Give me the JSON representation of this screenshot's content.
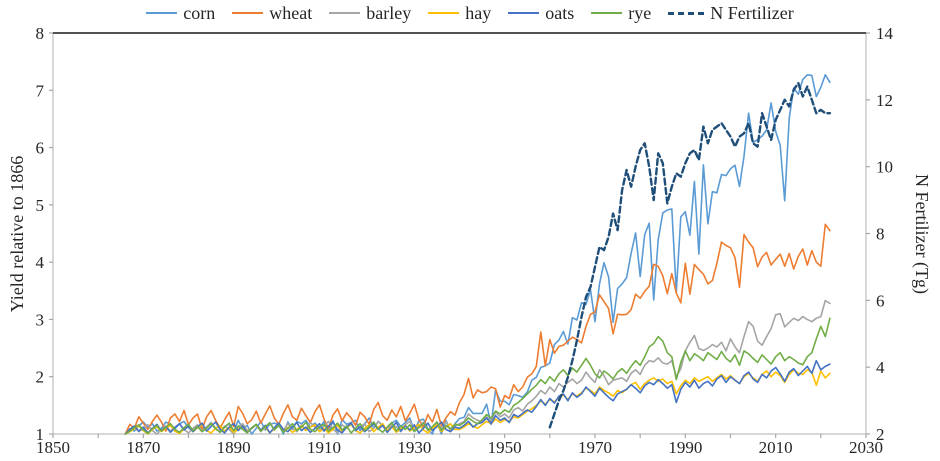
{
  "figure": {
    "background": "#FFFFFF",
    "axis_line_color": "#BFBFBF",
    "top_border_color": "#3B3B3B",
    "tick_color": "#A6A6A6",
    "label_color": "#262626"
  },
  "chart_data": {
    "type": "line",
    "title": "",
    "xlabel": "",
    "ylabel_left": "Yield relative to 1866",
    "ylabel_right": "N Fertilizer (Tg)",
    "x_range": [
      1850,
      2030
    ],
    "x_ticks": [
      1850,
      1870,
      1890,
      1910,
      1930,
      1950,
      1970,
      1990,
      2010,
      2030
    ],
    "x_minor_tick_step": 10,
    "y_left_range": [
      1,
      8
    ],
    "y_left_ticks": [
      1,
      2,
      3,
      4,
      5,
      6,
      7,
      8
    ],
    "y_right_range": [
      2,
      14
    ],
    "y_right_ticks": [
      2,
      4,
      6,
      8,
      10,
      12,
      14
    ],
    "grid": false,
    "legend_position": "top",
    "series": [
      {
        "name": "corn",
        "color": "#5B9BD5",
        "axis": "left",
        "style": "solid",
        "width": 1.6,
        "start_year": 1866,
        "values": [
          1.0,
          1.09,
          1.05,
          1.14,
          1.21,
          1.12,
          1.18,
          1.05,
          1.1,
          1.21,
          1.16,
          1.09,
          1.18,
          1.22,
          1.11,
          1.05,
          1.15,
          1.08,
          1.12,
          1.2,
          1.09,
          1.03,
          1.12,
          1.18,
          1.04,
          1.24,
          1.09,
          1.15,
          0.99,
          1.1,
          1.22,
          1.07,
          1.17,
          1.19,
          1.16,
          0.98,
          1.21,
          1.08,
          1.22,
          1.18,
          1.24,
          1.12,
          1.19,
          1.1,
          1.22,
          1.03,
          1.23,
          1.0,
          1.25,
          1.17,
          1.2,
          1.24,
          1.06,
          1.18,
          1.28,
          1.1,
          1.22,
          1.15,
          1.06,
          1.19,
          1.24,
          1.13,
          1.2,
          1.28,
          1.05,
          1.23,
          1.26,
          1.09,
          0.99,
          1.21,
          0.98,
          1.24,
          1.06,
          1.18,
          1.27,
          1.29,
          1.46,
          1.36,
          1.36,
          1.36,
          1.52,
          1.17,
          1.77,
          1.57,
          1.57,
          1.51,
          1.69,
          1.67,
          1.64,
          1.73,
          1.94,
          1.99,
          2.16,
          2.19,
          2.24,
          2.56,
          2.64,
          2.79,
          2.57,
          3.03,
          2.99,
          3.29,
          3.26,
          3.52,
          2.96,
          3.62,
          3.99,
          3.74,
          2.95,
          3.54,
          3.62,
          3.73,
          4.15,
          4.51,
          3.75,
          4.48,
          4.68,
          3.34,
          4.39,
          4.86,
          4.91,
          4.93,
          3.48,
          4.79,
          4.88,
          4.47,
          5.41,
          4.14,
          5.7,
          4.67,
          5.23,
          5.21,
          5.53,
          5.51,
          5.63,
          5.69,
          5.32,
          5.85,
          6.6,
          6.09,
          6.14,
          6.2,
          6.31,
          6.78,
          6.28,
          6.04,
          5.07,
          6.51,
          7.04,
          6.93,
          7.19,
          7.27,
          7.26,
          6.89,
          7.05,
          7.27,
          7.14
        ]
      },
      {
        "name": "wheat",
        "color": "#ED7D31",
        "axis": "left",
        "style": "solid",
        "width": 1.6,
        "start_year": 1866,
        "values": [
          1.0,
          1.17,
          1.1,
          1.3,
          1.19,
          1.08,
          1.22,
          1.33,
          1.21,
          1.05,
          1.28,
          1.35,
          1.22,
          1.41,
          1.16,
          1.28,
          1.35,
          1.08,
          1.3,
          1.41,
          1.24,
          1.1,
          1.25,
          1.38,
          1.13,
          1.48,
          1.36,
          1.18,
          1.25,
          1.4,
          1.19,
          1.35,
          1.49,
          1.28,
          1.17,
          1.36,
          1.51,
          1.3,
          1.24,
          1.45,
          1.32,
          1.2,
          1.39,
          1.51,
          1.26,
          1.1,
          1.33,
          1.44,
          1.23,
          1.37,
          1.28,
          1.15,
          1.38,
          1.3,
          1.17,
          1.43,
          1.55,
          1.32,
          1.24,
          1.42,
          1.3,
          1.48,
          1.23,
          1.36,
          1.52,
          1.25,
          1.12,
          1.34,
          1.21,
          1.43,
          1.14,
          1.28,
          1.39,
          1.33,
          1.55,
          1.69,
          1.97,
          1.63,
          1.77,
          1.72,
          1.74,
          1.82,
          1.79,
          1.47,
          1.67,
          1.62,
          1.86,
          1.74,
          1.82,
          1.99,
          2.05,
          2.18,
          2.78,
          2.19,
          2.65,
          2.41,
          2.53,
          2.55,
          2.62,
          2.69,
          2.65,
          2.59,
          2.88,
          3.09,
          3.13,
          3.43,
          3.31,
          3.19,
          2.75,
          3.09,
          3.08,
          3.09,
          3.17,
          3.44,
          3.37,
          3.49,
          3.58,
          3.96,
          3.93,
          3.76,
          3.45,
          3.8,
          3.46,
          3.29,
          3.98,
          3.44,
          3.96,
          3.87,
          3.79,
          3.62,
          3.68,
          3.98,
          4.35,
          4.29,
          4.25,
          4.08,
          3.56,
          4.48,
          4.35,
          4.25,
          3.92,
          4.09,
          4.17,
          3.95,
          4.05,
          4.14,
          3.93,
          4.15,
          3.88,
          4.1,
          4.23,
          3.95,
          4.2,
          4.0,
          3.93,
          4.66,
          4.55
        ]
      },
      {
        "name": "barley",
        "color": "#A5A5A5",
        "axis": "left",
        "style": "solid",
        "width": 1.6,
        "start_year": 1866,
        "values": [
          1.0,
          1.06,
          1.12,
          1.04,
          1.1,
          1.16,
          1.06,
          1.0,
          1.08,
          1.14,
          1.05,
          1.12,
          1.18,
          1.08,
          1.02,
          1.1,
          1.16,
          1.06,
          1.12,
          1.2,
          1.1,
          1.04,
          1.14,
          1.08,
          1.0,
          1.12,
          1.18,
          1.06,
          1.1,
          1.16,
          1.04,
          1.12,
          1.2,
          1.08,
          1.14,
          1.06,
          1.18,
          1.1,
          1.04,
          1.16,
          1.08,
          1.2,
          1.12,
          1.06,
          1.14,
          1.22,
          1.08,
          1.02,
          1.16,
          1.1,
          1.2,
          1.06,
          1.12,
          1.18,
          1.04,
          1.1,
          1.22,
          1.14,
          1.06,
          1.18,
          1.12,
          1.04,
          1.16,
          1.22,
          1.08,
          1.14,
          1.2,
          1.06,
          1.12,
          1.18,
          1.1,
          1.22,
          1.06,
          1.14,
          1.18,
          1.22,
          1.35,
          1.28,
          1.24,
          1.21,
          1.3,
          1.22,
          1.38,
          1.3,
          1.35,
          1.28,
          1.42,
          1.46,
          1.4,
          1.52,
          1.58,
          1.66,
          1.76,
          1.7,
          1.82,
          1.74,
          1.88,
          1.82,
          1.9,
          1.96,
          1.88,
          1.94,
          2.08,
          1.98,
          1.9,
          2.12,
          2.02,
          1.86,
          1.94,
          1.96,
          1.98,
          1.92,
          2.06,
          2.12,
          2.04,
          2.2,
          2.28,
          2.26,
          2.33,
          2.24,
          2.22,
          2.28,
          2.0,
          2.14,
          2.45,
          2.6,
          2.72,
          2.49,
          2.46,
          2.5,
          2.56,
          2.52,
          2.6,
          2.45,
          2.66,
          2.52,
          2.42,
          2.7,
          2.96,
          2.88,
          2.62,
          2.55,
          2.7,
          2.84,
          3.08,
          3.1,
          2.87,
          2.95,
          3.02,
          2.98,
          3.05,
          3.0,
          2.96,
          3.02,
          3.05,
          3.33,
          3.28
        ]
      },
      {
        "name": "hay",
        "color": "#FFC000",
        "axis": "left",
        "style": "solid",
        "width": 1.6,
        "start_year": 1866,
        "values": [
          1.0,
          1.04,
          1.09,
          1.14,
          1.06,
          1.0,
          1.08,
          1.13,
          1.04,
          1.1,
          1.15,
          1.05,
          1.01,
          1.09,
          1.14,
          1.04,
          1.11,
          1.16,
          1.06,
          1.02,
          1.1,
          1.15,
          1.05,
          1.12,
          1.03,
          1.08,
          1.14,
          1.04,
          1.1,
          1.16,
          1.06,
          1.12,
          1.02,
          1.09,
          1.15,
          1.05,
          1.11,
          1.03,
          1.08,
          1.14,
          1.06,
          1.12,
          1.16,
          1.04,
          1.1,
          1.02,
          1.08,
          1.15,
          1.05,
          1.11,
          1.17,
          1.06,
          1.02,
          1.1,
          1.16,
          1.04,
          1.12,
          1.18,
          1.06,
          1.13,
          1.03,
          1.09,
          1.15,
          1.05,
          1.11,
          1.17,
          1.07,
          1.02,
          1.1,
          1.16,
          1.04,
          1.12,
          1.18,
          1.08,
          1.08,
          1.12,
          1.18,
          1.14,
          1.1,
          1.16,
          1.22,
          1.18,
          1.26,
          1.2,
          1.25,
          1.22,
          1.3,
          1.28,
          1.34,
          1.4,
          1.44,
          1.5,
          1.58,
          1.52,
          1.6,
          1.56,
          1.64,
          1.68,
          1.6,
          1.7,
          1.66,
          1.72,
          1.8,
          1.76,
          1.7,
          1.82,
          1.76,
          1.72,
          1.66,
          1.76,
          1.72,
          1.78,
          1.86,
          1.9,
          1.78,
          1.88,
          1.94,
          1.98,
          1.92,
          1.96,
          1.88,
          1.92,
          1.7,
          1.84,
          1.94,
          1.88,
          1.98,
          1.92,
          1.96,
          2.0,
          1.92,
          1.98,
          2.04,
          1.96,
          2.02,
          1.94,
          1.88,
          2.0,
          2.06,
          1.98,
          1.92,
          2.04,
          2.1,
          2.0,
          2.08,
          2.02,
          1.9,
          2.04,
          2.12,
          2.06,
          2.04,
          2.12,
          2.08,
          1.85,
          2.1,
          1.98,
          2.06
        ]
      },
      {
        "name": "oats",
        "color": "#4472C4",
        "axis": "left",
        "style": "solid",
        "width": 1.6,
        "start_year": 1866,
        "values": [
          1.0,
          1.08,
          1.14,
          1.05,
          1.12,
          1.02,
          1.1,
          1.17,
          1.06,
          1.13,
          1.03,
          1.11,
          1.18,
          1.07,
          1.14,
          1.04,
          1.12,
          1.19,
          1.05,
          1.13,
          1.21,
          1.08,
          1.02,
          1.12,
          1.18,
          1.06,
          1.14,
          1.03,
          1.1,
          1.17,
          1.07,
          1.15,
          1.02,
          1.11,
          1.19,
          1.08,
          1.04,
          1.13,
          1.2,
          1.06,
          1.12,
          1.03,
          1.1,
          1.18,
          1.05,
          1.14,
          1.21,
          1.07,
          1.02,
          1.12,
          1.19,
          1.06,
          1.13,
          1.04,
          1.11,
          1.18,
          1.08,
          1.15,
          1.03,
          1.12,
          1.2,
          1.05,
          1.14,
          1.07,
          1.16,
          1.02,
          1.1,
          1.19,
          1.06,
          1.13,
          1.21,
          1.08,
          1.04,
          1.12,
          1.1,
          1.15,
          1.22,
          1.12,
          1.18,
          1.2,
          1.28,
          1.18,
          1.32,
          1.24,
          1.28,
          1.2,
          1.34,
          1.3,
          1.36,
          1.42,
          1.38,
          1.48,
          1.6,
          1.5,
          1.62,
          1.54,
          1.66,
          1.7,
          1.58,
          1.72,
          1.64,
          1.7,
          1.82,
          1.74,
          1.66,
          1.8,
          1.72,
          1.64,
          1.58,
          1.7,
          1.74,
          1.78,
          1.86,
          1.8,
          1.72,
          1.84,
          1.9,
          1.86,
          1.95,
          1.88,
          1.8,
          1.86,
          1.55,
          1.78,
          1.9,
          1.82,
          1.94,
          1.8,
          1.88,
          1.92,
          1.84,
          1.96,
          2.02,
          1.9,
          2.0,
          1.94,
          1.88,
          2.02,
          2.08,
          1.96,
          1.9,
          2.04,
          1.98,
          2.1,
          2.16,
          2.05,
          1.92,
          2.08,
          2.14,
          2.02,
          2.1,
          2.18,
          2.06,
          2.28,
          2.12,
          2.18,
          2.22
        ]
      },
      {
        "name": "rye",
        "color": "#70AD47",
        "axis": "left",
        "style": "solid",
        "width": 1.6,
        "start_year": 1866,
        "values": [
          1.0,
          1.05,
          1.11,
          1.16,
          1.07,
          1.01,
          1.09,
          1.15,
          1.05,
          1.12,
          1.18,
          1.08,
          1.03,
          1.11,
          1.17,
          1.06,
          1.13,
          1.04,
          1.1,
          1.18,
          1.09,
          1.03,
          1.12,
          1.19,
          1.06,
          1.14,
          1.08,
          1.02,
          1.11,
          1.17,
          1.05,
          1.13,
          1.19,
          1.07,
          1.15,
          1.03,
          1.1,
          1.18,
          1.06,
          1.12,
          1.2,
          1.08,
          1.04,
          1.13,
          1.17,
          1.05,
          1.11,
          1.19,
          1.07,
          1.14,
          1.02,
          1.1,
          1.18,
          1.06,
          1.13,
          1.21,
          1.09,
          1.03,
          1.12,
          1.2,
          1.05,
          1.14,
          1.08,
          1.16,
          1.04,
          1.11,
          1.19,
          1.07,
          1.13,
          1.21,
          1.06,
          1.15,
          1.09,
          1.17,
          1.15,
          1.2,
          1.28,
          1.22,
          1.18,
          1.25,
          1.34,
          1.28,
          1.4,
          1.35,
          1.42,
          1.38,
          1.5,
          1.55,
          1.62,
          1.7,
          1.78,
          1.85,
          1.95,
          1.88,
          2.0,
          1.92,
          2.05,
          2.12,
          2.02,
          2.15,
          2.08,
          2.2,
          2.32,
          2.2,
          2.05,
          1.98,
          2.1,
          2.04,
          1.96,
          2.08,
          2.14,
          2.06,
          2.18,
          2.28,
          2.2,
          2.35,
          2.52,
          2.58,
          2.7,
          2.62,
          2.42,
          2.35,
          1.95,
          2.25,
          2.45,
          2.28,
          2.4,
          2.35,
          2.28,
          2.42,
          2.36,
          2.3,
          2.44,
          2.32,
          2.26,
          2.38,
          2.2,
          2.45,
          2.4,
          2.32,
          2.25,
          2.38,
          2.3,
          2.22,
          2.35,
          2.42,
          2.28,
          2.35,
          2.3,
          2.24,
          2.21,
          2.35,
          2.42,
          2.66,
          2.88,
          2.7,
          3.02
        ]
      },
      {
        "name": "N Fertilizer",
        "color": "#1F4E79",
        "axis": "right",
        "style": "dashed",
        "width": 2.4,
        "start_year": 1960,
        "values": [
          2.2,
          2.6,
          3.0,
          3.3,
          3.7,
          4.2,
          4.8,
          5.5,
          6.1,
          6.4,
          7.0,
          7.6,
          7.5,
          7.9,
          8.6,
          8.1,
          9.3,
          9.9,
          9.4,
          10.0,
          10.5,
          10.7,
          10.0,
          9.0,
          10.4,
          10.1,
          8.9,
          9.4,
          9.8,
          9.7,
          10.1,
          10.4,
          10.5,
          10.2,
          11.2,
          10.7,
          11.1,
          11.2,
          11.3,
          11.1,
          10.9,
          10.6,
          10.9,
          11.0,
          11.3,
          10.7,
          10.6,
          11.6,
          11.2,
          10.8,
          11.4,
          11.7,
          12.0,
          11.8,
          12.3,
          12.5,
          12.1,
          12.4,
          12.0,
          11.6,
          11.7,
          11.6,
          11.6
        ]
      }
    ]
  }
}
